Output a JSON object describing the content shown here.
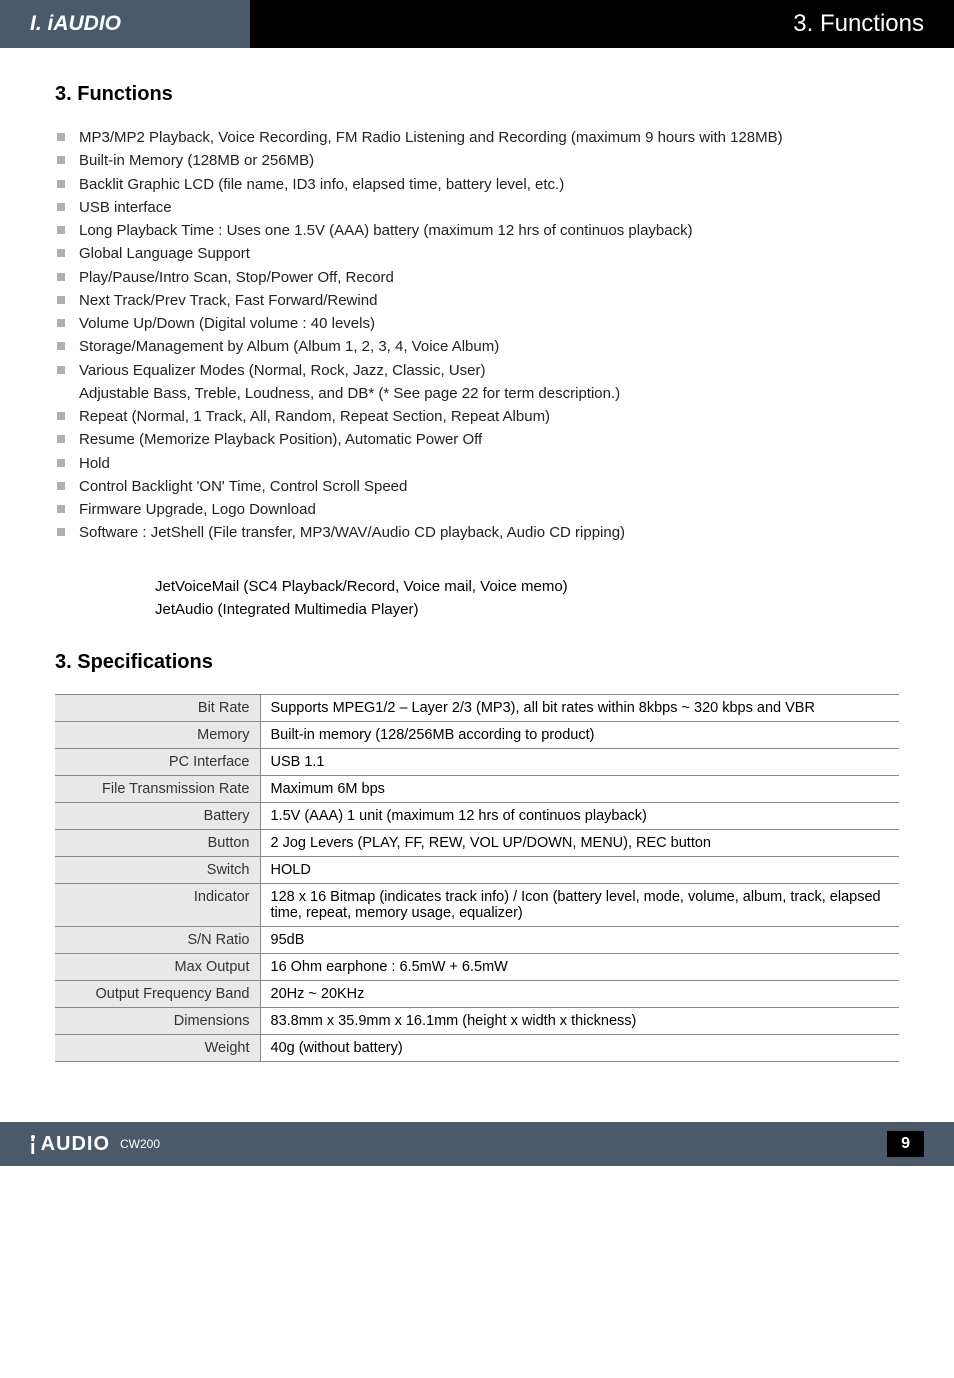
{
  "header": {
    "left": "I. iAUDIO",
    "right": "3. Functions"
  },
  "sections": {
    "functions_title": "3. Functions",
    "specs_title": "3. Specifications"
  },
  "features": [
    "MP3/MP2 Playback, Voice Recording, FM Radio Listening and Recording (maximum 9 hours with 128MB)",
    "Built-in Memory (128MB or 256MB)",
    "Backlit Graphic LCD (file name, ID3 info, elapsed time, battery level, etc.)",
    "USB interface",
    "Long Playback Time : Uses one 1.5V (AAA) battery (maximum 12 hrs of continuos playback)",
    "Global Language Support",
    "Play/Pause/Intro Scan, Stop/Power Off, Record",
    "Next Track/Prev Track, Fast Forward/Rewind",
    "Volume Up/Down (Digital volume : 40 levels)",
    "Storage/Management by Album (Album 1, 2, 3, 4, Voice Album)",
    "Various Equalizer Modes (Normal, Rock, Jazz, Classic, User)",
    "Adjustable Bass, Treble, Loudness, and DB*  (* See page 22 for term description.)",
    "Repeat (Normal, 1 Track, All, Random, Repeat Section, Repeat Album)",
    "Resume (Memorize Playback Position), Automatic Power Off",
    "Hold",
    "Control Backlight 'ON' Time, Control Scroll Speed",
    "Firmware Upgrade, Logo Download",
    "Software : JetShell (File transfer, MP3/WAV/Audio CD playback, Audio CD ripping)"
  ],
  "software_sub": [
    "JetVoiceMail (SC4 Playback/Record, Voice mail, Voice memo)",
    "JetAudio (Integrated Multimedia Player)"
  ],
  "specs": [
    {
      "label": "Bit Rate",
      "value": "Supports MPEG1/2 – Layer 2/3 (MP3), all bit rates within 8kbps ~ 320 kbps and VBR"
    },
    {
      "label": "Memory",
      "value": "Built-in memory (128/256MB according to product)"
    },
    {
      "label": "PC Interface",
      "value": "USB 1.1"
    },
    {
      "label": "File Transmission Rate",
      "value": "Maximum 6M bps"
    },
    {
      "label": "Battery",
      "value": "1.5V (AAA) 1 unit (maximum 12 hrs of continuos playback)"
    },
    {
      "label": "Button",
      "value": "2 Jog Levers (PLAY, FF, REW, VOL UP/DOWN, MENU), REC button"
    },
    {
      "label": "Switch",
      "value": "HOLD"
    },
    {
      "label": "Indicator",
      "value": "128 x 16 Bitmap (indicates track info) / Icon (battery level, mode, volume, album, track, elapsed time, repeat, memory usage, equalizer)"
    },
    {
      "label": "S/N Ratio",
      "value": "95dB"
    },
    {
      "label": "Max Output",
      "value": "16 Ohm earphone : 6.5mW + 6.5mW"
    },
    {
      "label": "Output Frequency Band",
      "value": "20Hz ~ 20KHz"
    },
    {
      "label": "Dimensions",
      "value": "83.8mm x 35.9mm x 16.1mm (height x width x thickness)"
    },
    {
      "label": "Weight",
      "value": "40g (without battery)"
    }
  ],
  "footer": {
    "brand": "AUDIO",
    "model": "CW200",
    "page": "9"
  }
}
